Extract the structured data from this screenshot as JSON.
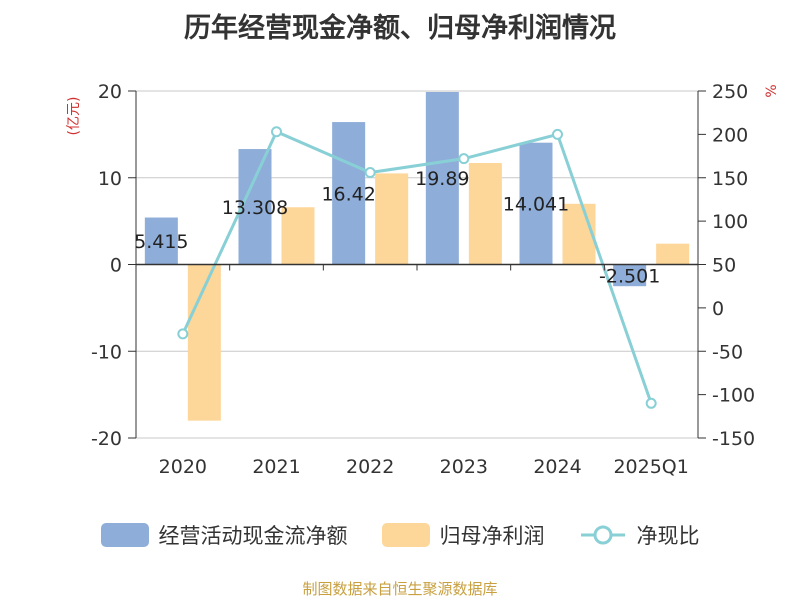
{
  "title": "历年经营现金净额、归母净利润情况",
  "source": "制图数据来自恒生聚源数据库",
  "legend": [
    {
      "name": "经营活动现金流净额",
      "type": "bar",
      "color": "#8eadd9"
    },
    {
      "name": "归母净利润",
      "type": "bar",
      "color": "#fdd699"
    },
    {
      "name": "净现比",
      "type": "line",
      "color": "#88d0d6"
    }
  ],
  "chart_data": {
    "type": "bar",
    "categories": [
      "2020",
      "2021",
      "2022",
      "2023",
      "2024",
      "2025Q1"
    ],
    "left_axis": {
      "unit": "(亿元)",
      "ylim": [
        -20,
        20
      ],
      "ticks": [
        20,
        10,
        0,
        -10,
        -20
      ]
    },
    "right_axis": {
      "unit": "%",
      "ylim": [
        -150,
        250
      ],
      "ticks": [
        250,
        200,
        150,
        100,
        50,
        0,
        -50,
        -100,
        -150
      ]
    },
    "series": [
      {
        "name": "经营活动现金流净额",
        "type": "bar",
        "axis": "left",
        "color": "#8eadd9",
        "values": [
          5.415,
          13.308,
          16.42,
          19.89,
          14.041,
          -2.501
        ],
        "labels": [
          "5.415",
          "13.308",
          "16.42",
          "19.89",
          "14.041",
          "-2.501"
        ]
      },
      {
        "name": "归母净利润",
        "type": "bar",
        "axis": "left",
        "color": "#fdd699",
        "values": [
          -18.0,
          6.6,
          10.5,
          11.7,
          7.0,
          2.4
        ]
      },
      {
        "name": "净现比",
        "type": "line",
        "axis": "right",
        "color": "#88d0d6",
        "values": [
          -30,
          203,
          156,
          172,
          200,
          -110
        ]
      }
    ],
    "grid": true
  }
}
